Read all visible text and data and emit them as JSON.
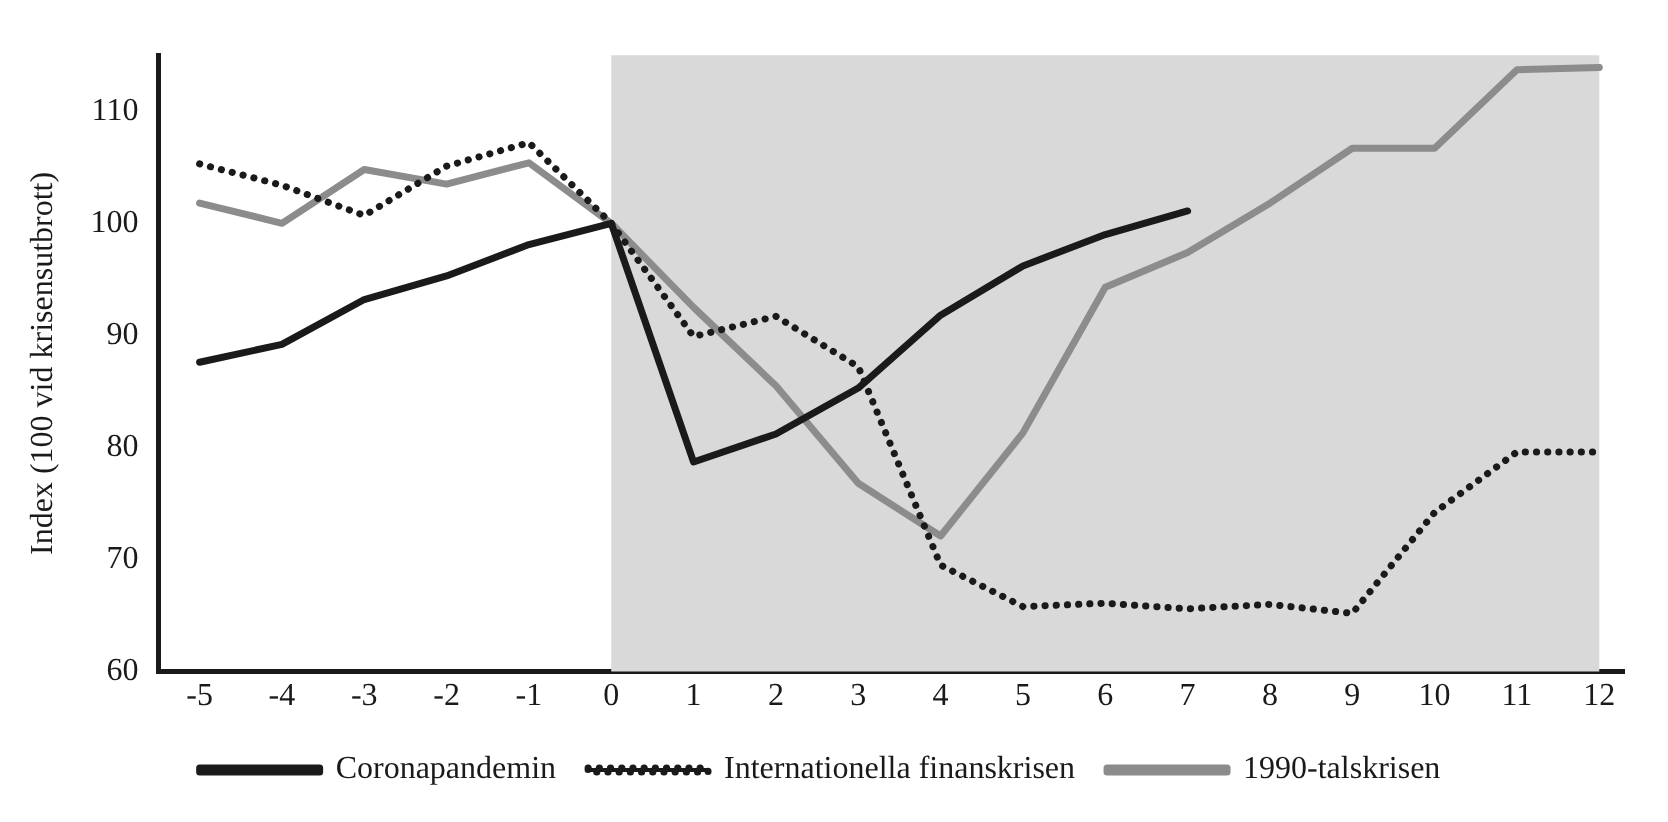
{
  "chart_data": {
    "type": "line",
    "ylabel": "Index (100 vid krisensutbrott)",
    "x": [
      -5,
      -4,
      -3,
      -2,
      -1,
      0,
      1,
      2,
      3,
      4,
      5,
      6,
      7,
      8,
      9,
      10,
      11,
      12
    ],
    "xlim": [
      -5.5,
      12.3
    ],
    "xticks": [
      -5,
      -4,
      -3,
      -2,
      -1,
      0,
      1,
      2,
      3,
      4,
      5,
      6,
      7,
      8,
      9,
      10,
      11,
      12
    ],
    "ylim": [
      60,
      115
    ],
    "yticks": [
      60,
      70,
      80,
      90,
      100,
      110
    ],
    "grid": false,
    "legend": "bottom",
    "marker": "none",
    "bands": [
      {
        "axis": "x",
        "from": 0,
        "to": 12,
        "color": "#d9d9d9"
      }
    ],
    "series": [
      {
        "name": "Coronapandemin",
        "color": "#1a1a1a",
        "line_style": "solid",
        "values": [
          87.6,
          89.2,
          93.2,
          95.3,
          98.1,
          100,
          78.7,
          81.2,
          85.3,
          91.8,
          96.2,
          99.0,
          101.1,
          null,
          null,
          null,
          null,
          null
        ]
      },
      {
        "name": "Internationella finanskrisen",
        "color": "#1a1a1a",
        "line_style": "dotted",
        "values": [
          105.3,
          103.4,
          100.7,
          105.1,
          107.2,
          100,
          89.9,
          91.7,
          87.2,
          69.5,
          65.8,
          66.1,
          65.6,
          66.0,
          65.2,
          74.2,
          79.6,
          79.6
        ]
      },
      {
        "name": "1990-talskrisen",
        "color": "#8c8c8c",
        "line_style": "solid",
        "values": [
          101.8,
          100,
          104.8,
          103.5,
          105.4,
          100,
          92.5,
          85.5,
          76.8,
          72.1,
          81.3,
          94.3,
          97.4,
          101.8,
          106.7,
          106.7,
          113.7,
          113.9
        ]
      }
    ]
  }
}
